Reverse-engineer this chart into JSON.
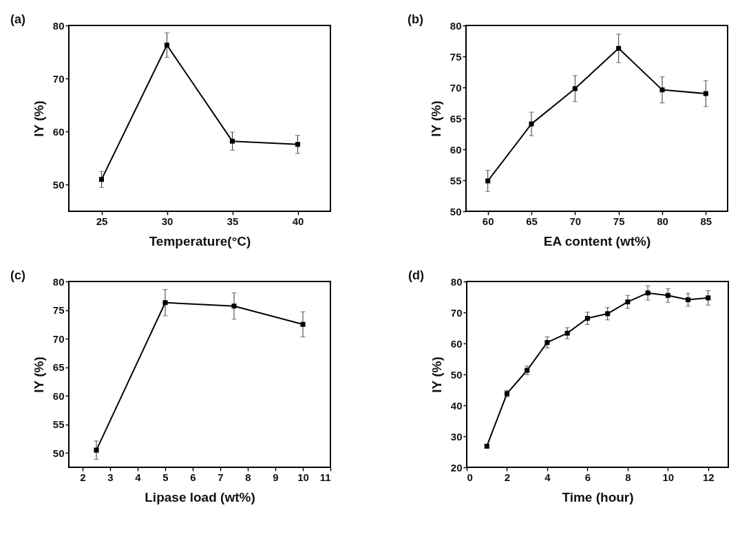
{
  "chart_data": [
    {
      "type": "line",
      "title": "(a)",
      "xlabel": "Temperature(°C)",
      "ylabel": "IY (%)",
      "marker": "square",
      "xlim": [
        22.5,
        42.5
      ],
      "ylim": [
        45,
        80
      ],
      "xticks": [
        25,
        30,
        35,
        40
      ],
      "yticks": [
        50,
        60,
        70,
        80
      ],
      "x": [
        25,
        30,
        35,
        40
      ],
      "series": [
        {
          "color": "#000000",
          "values": [
            51.0,
            76.3,
            58.2,
            57.6
          ],
          "errors": [
            1.5,
            2.3,
            1.7,
            1.7
          ]
        }
      ]
    },
    {
      "type": "line",
      "title": "(b)",
      "xlabel": "EA content (wt%)",
      "ylabel": "IY (%)",
      "marker": "square",
      "xlim": [
        57.5,
        87.5
      ],
      "ylim": [
        50,
        80
      ],
      "xticks": [
        60,
        65,
        70,
        75,
        80,
        85
      ],
      "yticks": [
        50,
        55,
        60,
        65,
        70,
        75,
        80
      ],
      "x": [
        60,
        65,
        70,
        75,
        80,
        85
      ],
      "series": [
        {
          "color": "#000000",
          "values": [
            54.9,
            64.1,
            69.8,
            76.3,
            69.6,
            69.0
          ],
          "errors": [
            1.7,
            1.9,
            2.1,
            2.3,
            2.1,
            2.1
          ]
        }
      ]
    },
    {
      "type": "line",
      "title": "(c)",
      "xlabel": "Lipase load (wt%)",
      "ylabel": "IY (%)",
      "marker": "square",
      "xlim": [
        1.5,
        11
      ],
      "ylim": [
        47.5,
        80
      ],
      "xticks": [
        2,
        3,
        4,
        5,
        6,
        7,
        8,
        9,
        10,
        11
      ],
      "yticks": [
        50,
        55,
        60,
        65,
        70,
        75,
        80
      ],
      "x": [
        2.5,
        5,
        7.5,
        10
      ],
      "series": [
        {
          "color": "#000000",
          "values": [
            50.5,
            76.3,
            75.7,
            72.5
          ],
          "errors": [
            1.6,
            2.3,
            2.3,
            2.2
          ]
        }
      ]
    },
    {
      "type": "line",
      "title": "(d)",
      "xlabel": "Time (hour)",
      "ylabel": "IY (%)",
      "marker": "square",
      "xlim": [
        0,
        13
      ],
      "ylim": [
        20,
        80
      ],
      "xticks": [
        0,
        2,
        4,
        6,
        8,
        10,
        12
      ],
      "yticks": [
        20,
        30,
        40,
        50,
        60,
        70,
        80
      ],
      "x": [
        1,
        2,
        3,
        4,
        5,
        6,
        7,
        8,
        9,
        10,
        11,
        12
      ],
      "series": [
        {
          "color": "#000000",
          "values": [
            26.8,
            43.8,
            51.3,
            60.3,
            63.3,
            68.1,
            69.6,
            73.4,
            76.3,
            75.5,
            74.1,
            74.7
          ],
          "errors": [
            0.5,
            1.0,
            1.4,
            1.8,
            1.8,
            2.0,
            2.0,
            2.1,
            2.3,
            2.2,
            2.1,
            2.3
          ]
        }
      ]
    }
  ]
}
